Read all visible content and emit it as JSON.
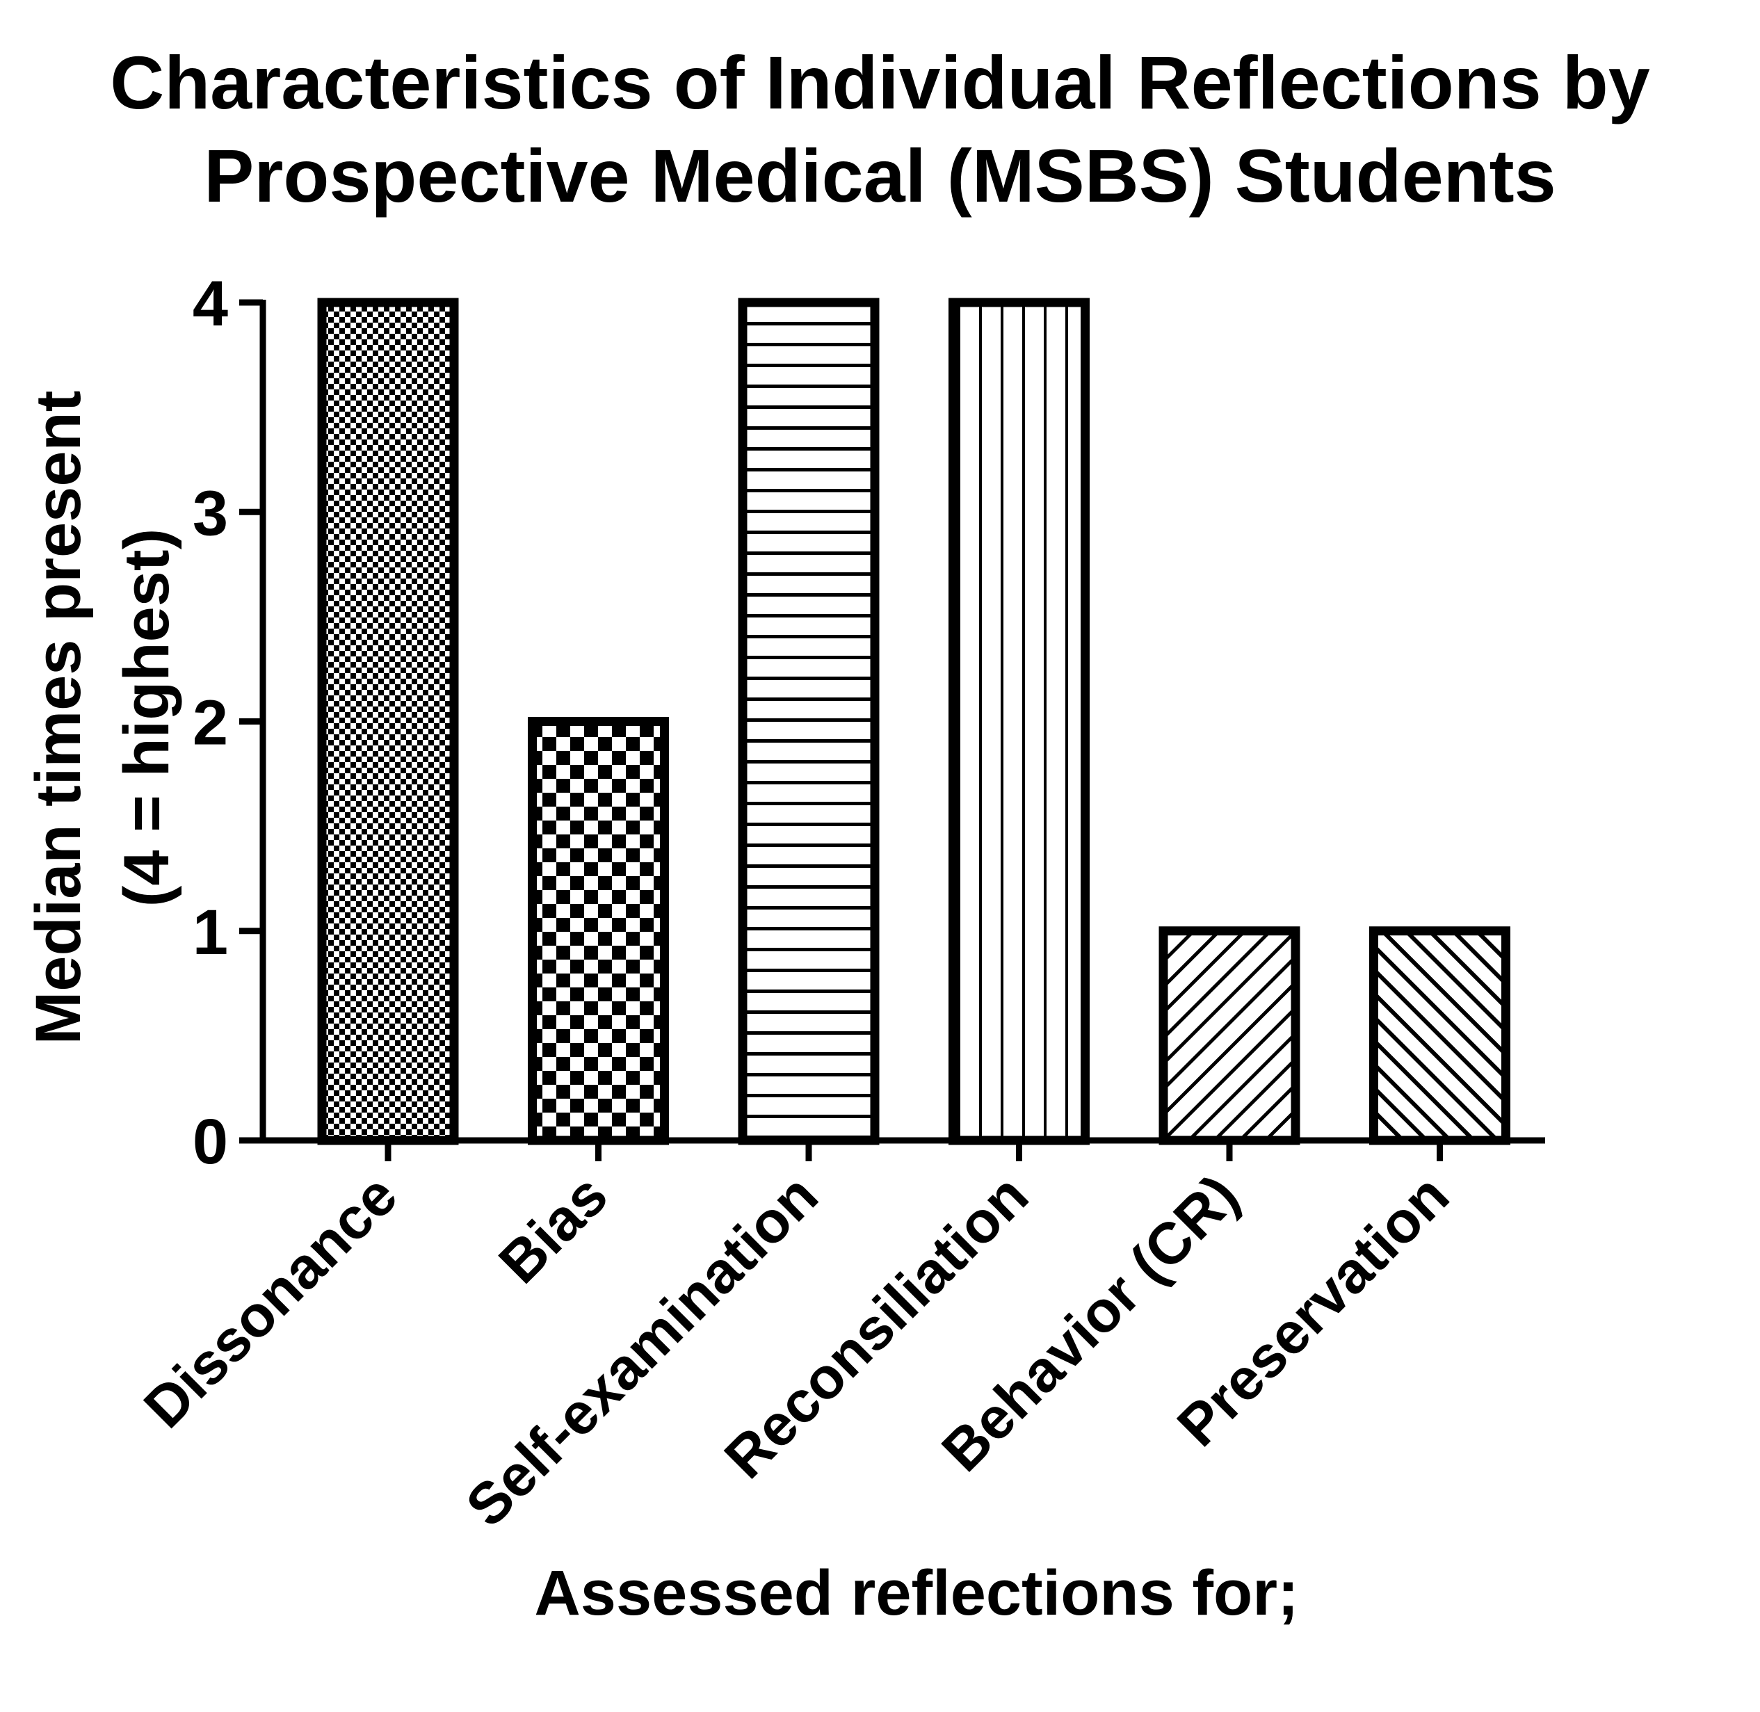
{
  "chart_data": {
    "type": "bar",
    "title_lines": [
      "Characteristics of Individual Reflections by",
      "Prospective Medical (MSBS) Students"
    ],
    "ylabel_lines": [
      "Median times present",
      "(4 = highest)"
    ],
    "xlabel": "Assessed reflections for;",
    "categories": [
      "Dissonance",
      "Bias",
      "Self-examination",
      "Reconsiliation",
      "Behavior (CR)",
      "Preservation"
    ],
    "values": [
      4,
      2,
      4,
      4,
      1,
      1
    ],
    "patterns": [
      "fine-checker",
      "coarse-checker",
      "horizontal-lines",
      "vertical-lines",
      "diagonal-up",
      "diagonal-down"
    ],
    "ylim": [
      0,
      4
    ],
    "yticks": [
      0,
      1,
      2,
      3,
      4
    ],
    "grid": false,
    "legend": "none",
    "colors": {
      "fill": "#ffffff",
      "stroke": "#000000"
    }
  }
}
